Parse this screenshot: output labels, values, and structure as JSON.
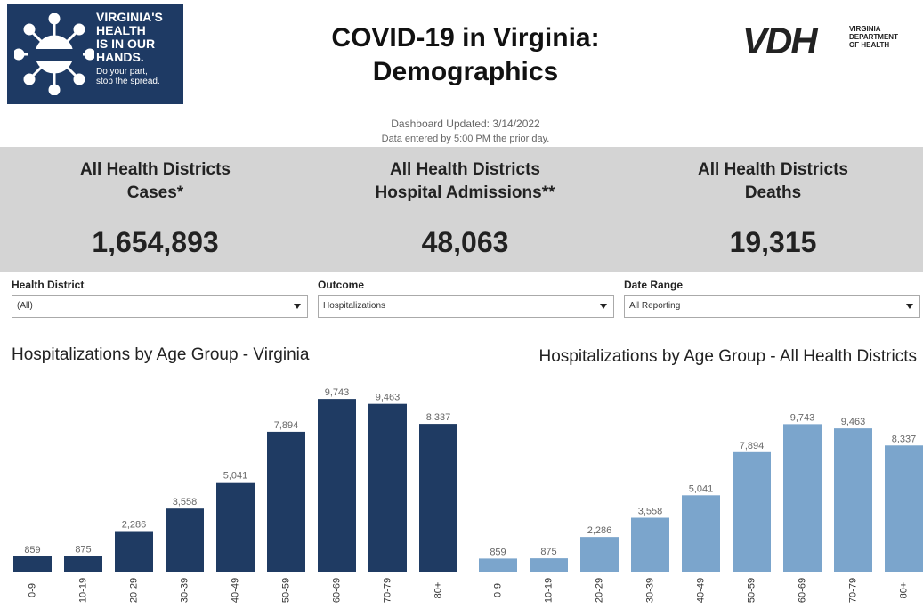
{
  "header": {
    "logo": {
      "lines": [
        "VIRGINIA'S",
        "HEALTH",
        "IS IN OUR",
        "HANDS."
      ],
      "tagline": [
        "Do your part,",
        "stop the spread."
      ]
    },
    "title": "COVID-19 in Virginia: Demographics",
    "agency": {
      "mark": "VDH",
      "lines": [
        "VIRGINIA",
        "DEPARTMENT",
        "OF HEALTH"
      ]
    },
    "updated": "Dashboard Updated: 3/14/2022",
    "note": "Data entered by 5:00 PM the prior day."
  },
  "kpis": [
    {
      "label": "All Health Districts",
      "metric": "Cases*",
      "value": "1,654,893"
    },
    {
      "label": "All Health Districts",
      "metric": "Hospital Admissions**",
      "value": "48,063"
    },
    {
      "label": "All Health Districts",
      "metric": "Deaths",
      "value": "19,315"
    }
  ],
  "filters": [
    {
      "label": "Health District",
      "selected": "(All)"
    },
    {
      "label": "Outcome",
      "selected": "Hospitalizations"
    },
    {
      "label": "Date Range",
      "selected": "All Reporting"
    }
  ],
  "chart_data": [
    {
      "type": "bar",
      "title": "Hospitalizations by Age Group - Virginia",
      "color": "#1f3b63",
      "categories": [
        "0-9",
        "10-19",
        "20-29",
        "30-39",
        "40-49",
        "50-59",
        "60-69",
        "70-79",
        "80+"
      ],
      "values": [
        859,
        875,
        2286,
        3558,
        5041,
        7894,
        9743,
        9463,
        8337
      ],
      "value_labels": [
        "859",
        "875",
        "2,286",
        "3,558",
        "5,041",
        "7,894",
        "9,743",
        "9,463",
        "8,337"
      ],
      "ylim": [
        0,
        10000
      ]
    },
    {
      "type": "bar",
      "title": "Hospitalizations by Age Group - All Health Districts",
      "color": "#7ba5cc",
      "categories": [
        "0-9",
        "10-19",
        "20-29",
        "30-39",
        "40-49",
        "50-59",
        "60-69",
        "70-79",
        "80+"
      ],
      "values": [
        859,
        875,
        2286,
        3558,
        5041,
        7894,
        9743,
        9463,
        8337
      ],
      "value_labels": [
        "859",
        "875",
        "2,286",
        "3,558",
        "5,041",
        "7,894",
        "9,743",
        "9,463",
        "8,337"
      ],
      "ylim": [
        0,
        10000
      ]
    }
  ]
}
